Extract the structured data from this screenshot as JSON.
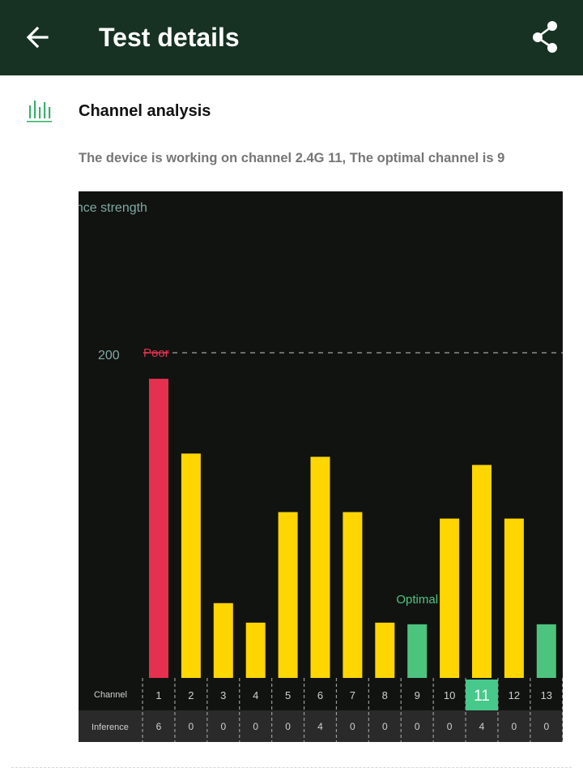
{
  "header": {
    "title": "Test details",
    "back_icon": "arrow-left-icon",
    "share_icon": "share-icon",
    "background": "#173223"
  },
  "section": {
    "icon": "bar-chart-icon",
    "title": "Channel analysis",
    "description": "The device is working on channel 2.4G 11, The optimal channel is 9"
  },
  "chart_data": {
    "type": "bar",
    "ylabel": "ence strength",
    "threshold": {
      "value": 200,
      "tick_label": "200",
      "label": "Poor"
    },
    "optimal_label": "Optimal",
    "row_labels": {
      "channel": "Channel",
      "inference": "Inference"
    },
    "categories": [
      "1",
      "2",
      "3",
      "4",
      "5",
      "6",
      "7",
      "8",
      "9",
      "10",
      "11",
      "12",
      "13"
    ],
    "values": [
      184,
      138,
      46,
      34,
      102,
      136,
      102,
      34,
      33,
      98,
      131,
      98,
      33
    ],
    "inference": [
      "6",
      "0",
      "0",
      "0",
      "0",
      "4",
      "0",
      "0",
      "0",
      "0",
      "4",
      "0",
      "0"
    ],
    "bar_colors": [
      "#e5304f",
      "#ffd600",
      "#ffd600",
      "#ffd600",
      "#ffd600",
      "#ffd600",
      "#ffd600",
      "#ffd600",
      "#4cc47e",
      "#ffd600",
      "#ffd600",
      "#ffd600",
      "#4cc47e"
    ],
    "current_channel": "11",
    "optimal_channel": "9",
    "colors": {
      "background": "#111311",
      "poor": "#e5304f",
      "normal": "#ffd600",
      "optimal": "#4cc47e",
      "axis_text": "#7fa9a3"
    }
  }
}
